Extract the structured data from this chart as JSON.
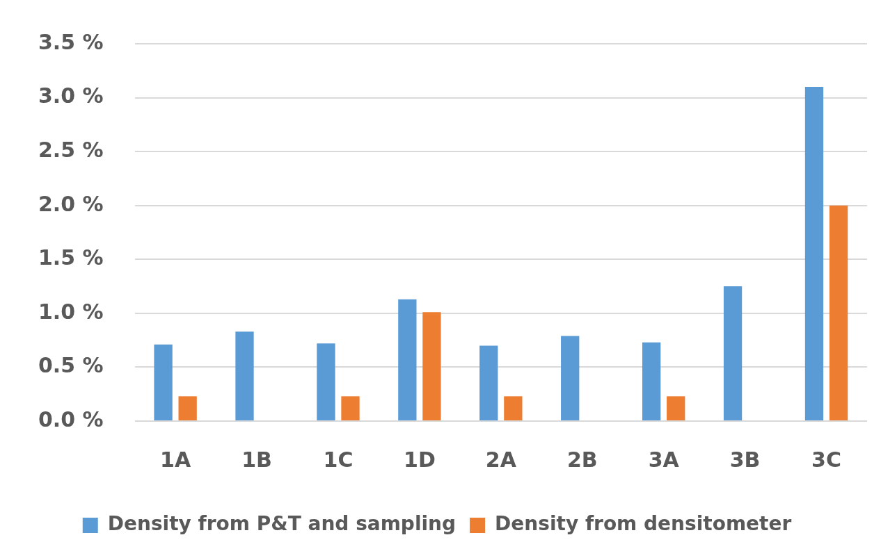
{
  "chart_data": {
    "type": "bar",
    "categories": [
      "1A",
      "1B",
      "1C",
      "1D",
      "2A",
      "2B",
      "3A",
      "3B",
      "3C"
    ],
    "series": [
      {
        "name": "Density from P&T and sampling",
        "color": "#5b9bd5",
        "values": [
          0.71,
          0.83,
          0.72,
          1.13,
          0.7,
          0.79,
          0.73,
          1.25,
          3.1
        ]
      },
      {
        "name": "Density from densitometer",
        "color": "#ed7d31",
        "values": [
          0.23,
          null,
          0.23,
          1.01,
          0.23,
          null,
          0.23,
          null,
          2.0
        ]
      }
    ],
    "ylim": [
      0,
      3.5
    ],
    "yticks": [
      {
        "value": 0,
        "label": "0.0 %"
      },
      {
        "value": 0.5,
        "label": "0.5 %"
      },
      {
        "value": 1,
        "label": "1.0 %"
      },
      {
        "value": 1.5,
        "label": "1.5 %"
      },
      {
        "value": 2,
        "label": "2.0 %"
      },
      {
        "value": 2.5,
        "label": "2.5 %"
      },
      {
        "value": 3,
        "label": "3.0 %"
      },
      {
        "value": 3.5,
        "label": "3.5 %"
      }
    ],
    "grid": "y",
    "legend": "bottom"
  }
}
